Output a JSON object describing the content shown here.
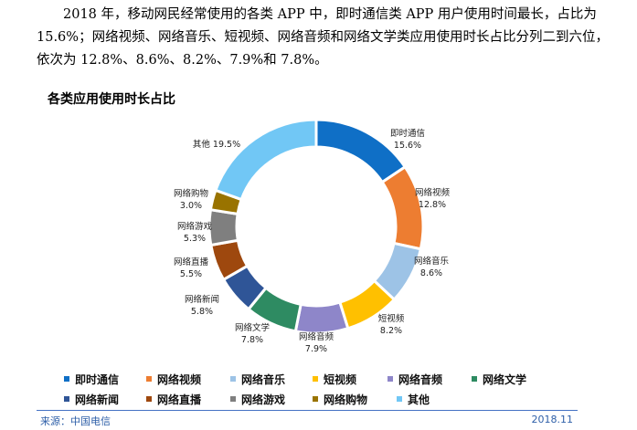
{
  "paragraph": {
    "line1": "2018 年，移动网民经常使用的各类 APP 中，即时通信类 APP 用户使用时间最长，占比为",
    "line2": "15.6%；网络视频、网络音乐、短视频、网络音频和网络文学类应用使用时长占比分列二到六位，",
    "line3": "依次为 12.8%、8.6%、8.2%、7.9%和 7.8%。"
  },
  "chart_data": {
    "type": "pie",
    "variant": "donut",
    "title": "各类应用使用时长占比",
    "unit": "%",
    "legend_position": "bottom",
    "slices": [
      {
        "name": "即时通信",
        "value": 15.6,
        "label": "15.6%",
        "color": "#0f6fc6"
      },
      {
        "name": "网络视频",
        "value": 12.8,
        "label": "12.8%",
        "color": "#ed7d31"
      },
      {
        "name": "网络音乐",
        "value": 8.6,
        "label": "8.6%",
        "color": "#9dc3e6"
      },
      {
        "name": "短视频",
        "value": 8.2,
        "label": "8.2%",
        "color": "#ffc000"
      },
      {
        "name": "网络音频",
        "value": 7.9,
        "label": "7.9%",
        "color": "#8e86c9"
      },
      {
        "name": "网络文学",
        "value": 7.8,
        "label": "7.8%",
        "color": "#2e8b62"
      },
      {
        "name": "网络新闻",
        "value": 5.8,
        "label": "5.8%",
        "color": "#2f5597"
      },
      {
        "name": "网络直播",
        "value": 5.5,
        "label": "5.5%",
        "color": "#9e480e"
      },
      {
        "name": "网络游戏",
        "value": 5.3,
        "label": "5.3%",
        "color": "#7f7f7f"
      },
      {
        "name": "网络购物",
        "value": 3.0,
        "label": "3.0%",
        "color": "#997300"
      },
      {
        "name": "其他",
        "value": 19.5,
        "label": "19.5%",
        "color": "#71c7f5"
      }
    ]
  },
  "footer": {
    "source": "来源：中国电信",
    "date": "2018.11"
  }
}
